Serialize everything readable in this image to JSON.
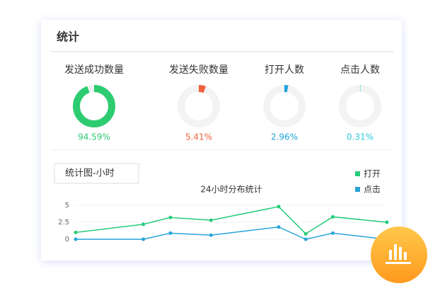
{
  "title": "统计",
  "chart_data": [
    {
      "type": "donut",
      "title": "发送成功数量",
      "values": [
        94.59
      ],
      "value_labels": [
        "94.59%"
      ],
      "color": "#2ecc71"
    },
    {
      "type": "donut",
      "title": "发送失败数量",
      "values": [
        5.41
      ],
      "value_labels": [
        "5.41%"
      ],
      "color": "#f0613e"
    },
    {
      "type": "donut",
      "title": "打开人数",
      "values": [
        2.96
      ],
      "value_labels": [
        "2.96%"
      ],
      "color": "#1fa3dd"
    },
    {
      "type": "donut",
      "title": "点击人数",
      "values": [
        0.31
      ],
      "value_labels": [
        "0.31%"
      ],
      "color": "#2bc9de"
    },
    {
      "type": "line",
      "tab": "统计图-小时",
      "title": "24小时分布统计",
      "x": [
        0,
        5,
        7,
        10,
        15,
        17,
        19,
        23
      ],
      "xlim": [
        0,
        23
      ],
      "ylim": [
        0,
        5
      ],
      "yticks": [
        0,
        2.5,
        5
      ],
      "grid": true,
      "series": [
        {
          "name": "打开",
          "color": "#25cc7a",
          "values": [
            1,
            2.2,
            3.2,
            2.8,
            4.8,
            0.8,
            3.3,
            2.5
          ]
        },
        {
          "name": "点击",
          "color": "#28a4d8",
          "values": [
            0,
            0,
            0.9,
            0.6,
            1.8,
            0,
            0.9,
            0
          ]
        }
      ]
    }
  ]
}
